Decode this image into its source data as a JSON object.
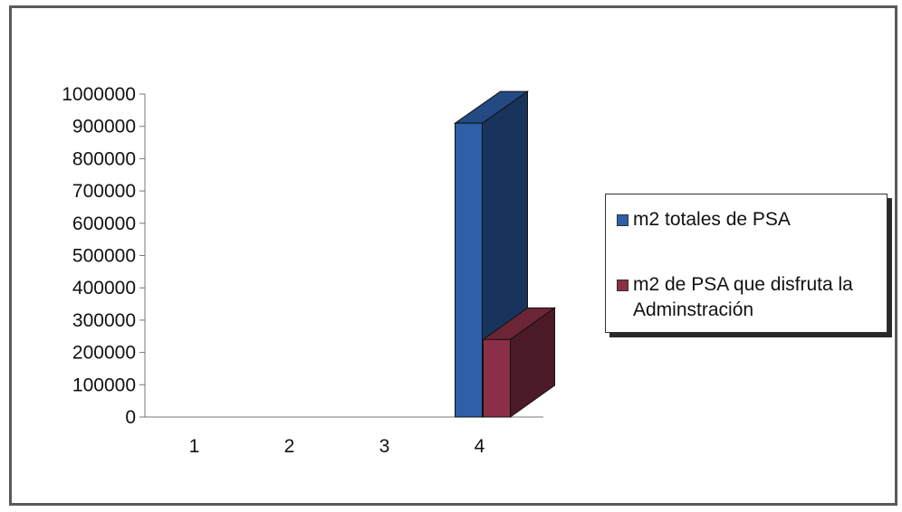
{
  "chart_data": {
    "type": "bar",
    "variant": "3d-column",
    "categories": [
      "1",
      "2",
      "3",
      "4"
    ],
    "series": [
      {
        "name": "m2 totales de PSA",
        "color": "#2e5fa8",
        "values": [
          0,
          0,
          0,
          910000
        ]
      },
      {
        "name": "m2 de PSA que disfruta la Adminstración",
        "color": "#8a2f47",
        "values": [
          0,
          0,
          0,
          240000
        ]
      }
    ],
    "y_ticks": [
      "0",
      "100000",
      "200000",
      "300000",
      "400000",
      "500000",
      "600000",
      "700000",
      "800000",
      "900000",
      "1000000"
    ],
    "ylim": [
      0,
      1000000
    ],
    "grid": false,
    "legend_position": "right",
    "title": "",
    "xlabel": "",
    "ylabel": ""
  },
  "legend": {
    "items": [
      {
        "label": "m2 totales de PSA",
        "color": "#2e5fa8"
      },
      {
        "label": "m2 de PSA que disfruta la Adminstración",
        "color": "#8a2f47"
      }
    ]
  }
}
